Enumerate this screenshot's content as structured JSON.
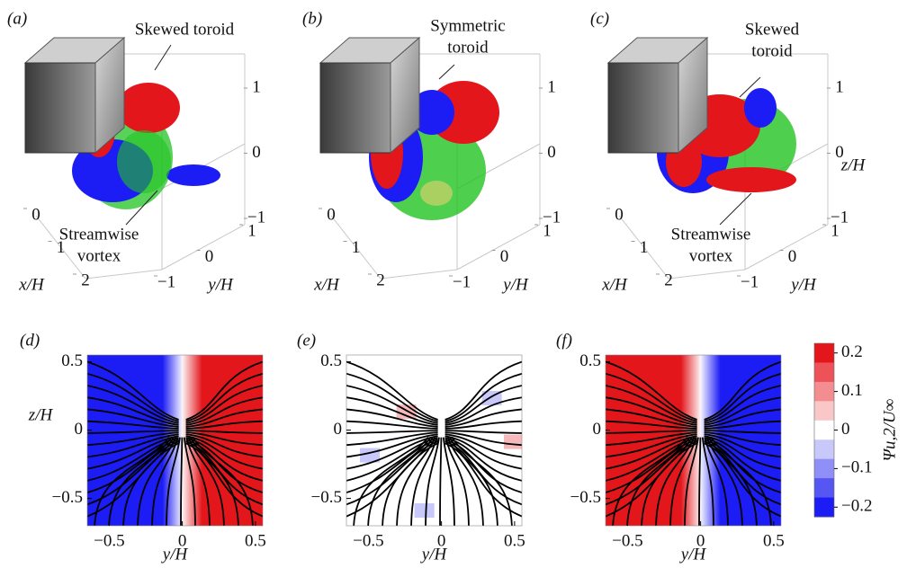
{
  "chart_data": [
    {
      "type": "isosurface",
      "panel_label": "(a)",
      "annotations": [
        {
          "lines": [
            "Skewed toroid"
          ]
        },
        {
          "lines": [
            "Streamwise",
            "vortex"
          ]
        }
      ],
      "xlabel": "x/H",
      "ylabel": "y/H",
      "xlim": [
        0,
        2
      ],
      "xticks": [
        0,
        1,
        2
      ],
      "ylim": [
        -1,
        1
      ],
      "yticks": [
        {
          "value": -1,
          "label": "−1"
        },
        0,
        1
      ],
      "zlim": [
        -1,
        1
      ],
      "zticks": [
        {
          "value": -1,
          "label": "−1"
        },
        0,
        1
      ]
    },
    {
      "type": "isosurface",
      "panel_label": "(b)",
      "annotations": [
        {
          "lines": [
            "Symmetric",
            "toroid"
          ]
        }
      ],
      "xlabel": "x/H",
      "ylabel": "y/H",
      "xlim": [
        0,
        2
      ],
      "xticks": [
        0,
        1,
        2
      ],
      "ylim": [
        -1,
        1
      ],
      "yticks": [
        {
          "value": -1,
          "label": "−1"
        },
        0,
        1
      ],
      "zlim": [
        -1,
        1
      ],
      "zticks": [
        {
          "value": -1,
          "label": "−1"
        },
        0,
        1
      ]
    },
    {
      "type": "isosurface",
      "panel_label": "(c)",
      "annotations": [
        {
          "lines": [
            "Skewed",
            "toroid"
          ]
        },
        {
          "lines": [
            "Streamwise",
            "vortex"
          ]
        }
      ],
      "xlabel": "x/H",
      "ylabel": "y/H",
      "zlabel": "z/H",
      "xlim": [
        0,
        2
      ],
      "xticks": [
        0,
        1,
        2
      ],
      "ylim": [
        -1,
        1
      ],
      "yticks": [
        {
          "value": -1,
          "label": "−1"
        },
        0,
        1
      ],
      "zlim": [
        -1,
        1
      ],
      "zticks": [
        {
          "value": -1,
          "label": "−1"
        },
        0,
        1
      ]
    },
    {
      "type": "streamline",
      "panel_label": "(d)",
      "xlabel": "y/H",
      "ylabel": "z/H",
      "xlim": [
        -0.65,
        0.55
      ],
      "xticks": [
        {
          "value": -0.5,
          "label": "−0.5"
        },
        0,
        0.5
      ],
      "ylim": [
        -0.7,
        0.55
      ],
      "yticks": [
        {
          "value": -0.5,
          "label": "−0.5"
        },
        0,
        0.5
      ],
      "left_color": "#1c1cf5",
      "right_color": "#e3161c"
    },
    {
      "type": "streamline",
      "panel_label": "(e)",
      "xlabel": "y/H",
      "xlim": [
        -0.65,
        0.55
      ],
      "xticks": [
        {
          "value": -0.5,
          "label": "−0.5"
        },
        0,
        0.5
      ],
      "ylim": [
        -0.7,
        0.55
      ],
      "yticks": [
        {
          "value": -0.5,
          "label": "−0.5"
        },
        0,
        0.5
      ],
      "left_color": "#ffffff",
      "right_color": "#ffffff"
    },
    {
      "type": "streamline",
      "panel_label": "(f)",
      "xlabel": "y/H",
      "xlim": [
        -0.65,
        0.55
      ],
      "xticks": [
        {
          "value": -0.5,
          "label": "−0.5"
        },
        0,
        0.5
      ],
      "ylim": [
        -0.7,
        0.55
      ],
      "yticks": [
        {
          "value": -0.5,
          "label": "−0.5"
        },
        0,
        0.5
      ],
      "left_color": "#e3161c",
      "right_color": "#1c1cf5"
    },
    {
      "type": "colorbar",
      "label": "Ψu,2/U∞",
      "clim": [
        -0.225,
        0.225
      ],
      "ticks": [
        0.2,
        0.1,
        0,
        {
          "value": -0.1,
          "label": "−0.1"
        },
        {
          "value": -0.2,
          "label": "−0.2"
        }
      ],
      "colors": [
        "#e3161c",
        "#ec5257",
        "#f38d90",
        "#f9c7c8",
        "#ffffff",
        "#c8c8fb",
        "#8f8ff7",
        "#5656f2",
        "#1c1cf5"
      ]
    }
  ]
}
